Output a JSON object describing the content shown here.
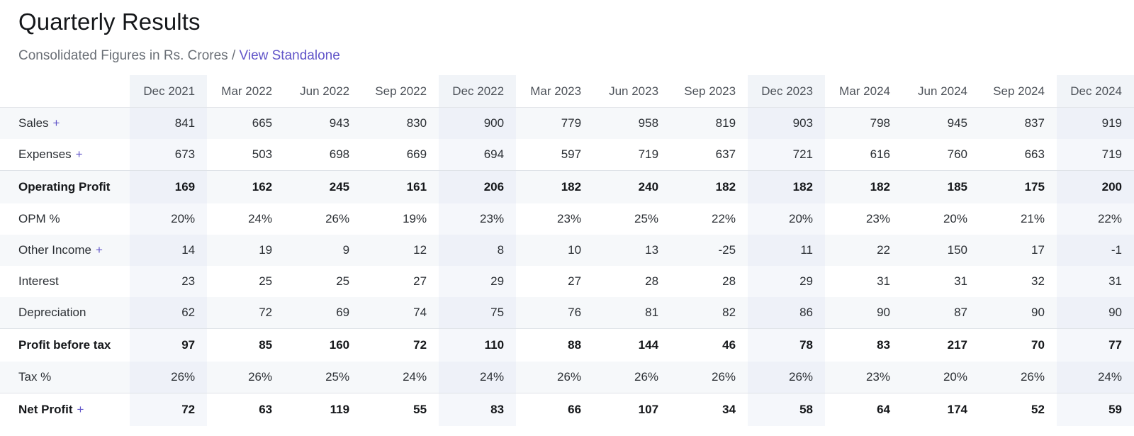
{
  "header": {
    "title": "Quarterly Results",
    "subtitle": "Consolidated Figures in Rs. Crores / ",
    "view_link": "View Standalone"
  },
  "table": {
    "quarters": [
      "Dec 2021",
      "Mar 2022",
      "Jun 2022",
      "Sep 2022",
      "Dec 2022",
      "Mar 2023",
      "Jun 2023",
      "Sep 2023",
      "Dec 2023",
      "Mar 2024",
      "Jun 2024",
      "Sep 2024",
      "Dec 2024"
    ],
    "rows": [
      {
        "label": "Sales",
        "expand": "+",
        "values": [
          "841",
          "665",
          "943",
          "830",
          "900",
          "779",
          "958",
          "819",
          "903",
          "798",
          "945",
          "837",
          "919"
        ]
      },
      {
        "label": "Expenses",
        "expand": "+",
        "values": [
          "673",
          "503",
          "698",
          "669",
          "694",
          "597",
          "719",
          "637",
          "721",
          "616",
          "760",
          "663",
          "719"
        ]
      },
      {
        "label": "Operating Profit",
        "values": [
          "169",
          "162",
          "245",
          "161",
          "206",
          "182",
          "240",
          "182",
          "182",
          "182",
          "185",
          "175",
          "200"
        ]
      },
      {
        "label": "OPM %",
        "values": [
          "20%",
          "24%",
          "26%",
          "19%",
          "23%",
          "23%",
          "25%",
          "22%",
          "20%",
          "23%",
          "20%",
          "21%",
          "22%"
        ]
      },
      {
        "label": "Other Income",
        "expand": "+",
        "values": [
          "14",
          "19",
          "9",
          "12",
          "8",
          "10",
          "13",
          "-25",
          "11",
          "22",
          "150",
          "17",
          "-1"
        ]
      },
      {
        "label": "Interest",
        "values": [
          "23",
          "25",
          "25",
          "27",
          "29",
          "27",
          "28",
          "28",
          "29",
          "31",
          "31",
          "32",
          "31"
        ]
      },
      {
        "label": "Depreciation",
        "values": [
          "62",
          "72",
          "69",
          "74",
          "75",
          "76",
          "81",
          "82",
          "86",
          "90",
          "87",
          "90",
          "90"
        ]
      },
      {
        "label": "Profit before tax",
        "values": [
          "97",
          "85",
          "160",
          "72",
          "110",
          "88",
          "144",
          "46",
          "78",
          "83",
          "217",
          "70",
          "77"
        ]
      },
      {
        "label": "Tax %",
        "values": [
          "26%",
          "26%",
          "25%",
          "24%",
          "24%",
          "26%",
          "26%",
          "26%",
          "26%",
          "23%",
          "20%",
          "26%",
          "24%"
        ]
      },
      {
        "label": "Net Profit",
        "expand": "+",
        "values": [
          "72",
          "63",
          "119",
          "55",
          "83",
          "66",
          "107",
          "34",
          "58",
          "64",
          "174",
          "52",
          "59"
        ]
      }
    ]
  }
}
